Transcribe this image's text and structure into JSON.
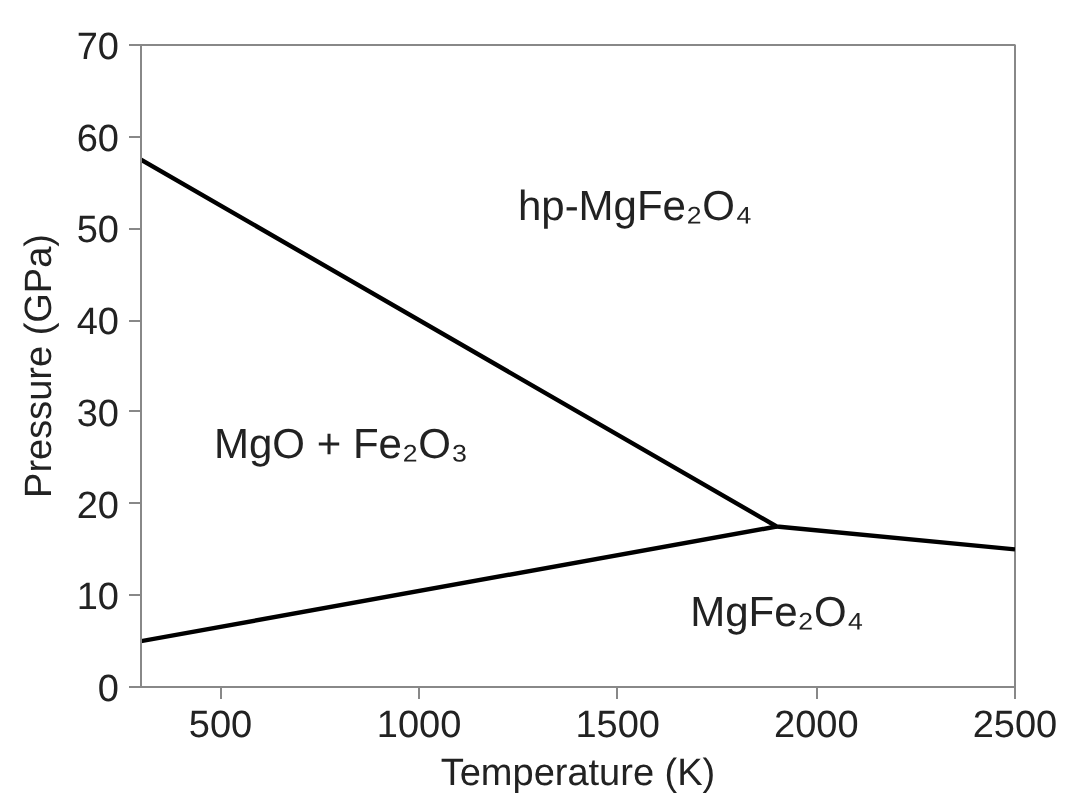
{
  "chart_data": {
    "type": "line",
    "xlabel": "Temperature (K)",
    "ylabel": "Pressure (GPa)",
    "xlim": [
      300,
      2500
    ],
    "xticks": [
      500,
      1000,
      1500,
      2000,
      2500
    ],
    "ylim": [
      0,
      70
    ],
    "yticks": [
      0,
      10,
      20,
      30,
      40,
      50,
      60,
      70
    ],
    "grid": false,
    "marker": "none",
    "line_style": "solid",
    "series": [
      {
        "color": "#000000",
        "x": [
          300,
          1900,
          2500
        ],
        "values": [
          57.5,
          17.5,
          15
        ]
      },
      {
        "color": "#000000",
        "x": [
          300,
          1900
        ],
        "values": [
          5,
          17.5
        ]
      }
    ],
    "annotations": [
      "hp-MgFe₂O₄",
      "MgO + Fe₂O₃",
      "MgFe₂O₄"
    ]
  }
}
